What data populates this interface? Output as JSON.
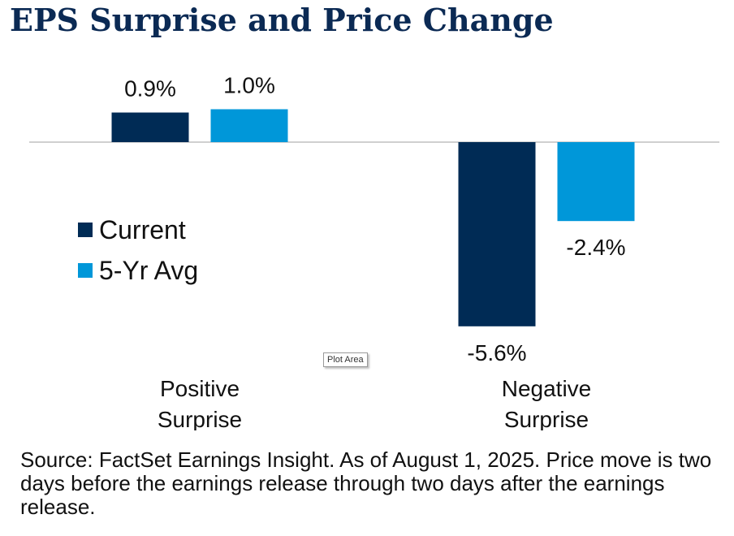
{
  "title": "EPS Surprise and Price Change",
  "tooltip": "Plot Area",
  "source": "Source: FactSet Earnings Insight. As of August 1, 2025. Price move is two days before the earnings release through two days after the earnings release.",
  "chart_data": {
    "type": "bar",
    "title": "EPS Surprise and Price Change",
    "categories": [
      [
        "Positive",
        "Surprise"
      ],
      [
        "Negative",
        "Surprise"
      ]
    ],
    "series": [
      {
        "name": "Current",
        "values": [
          0.9,
          -5.6
        ],
        "labels": [
          "0.9%",
          "-5.6%"
        ],
        "color": "#002b55"
      },
      {
        "name": "5-Yr Avg",
        "values": [
          1.0,
          -2.4
        ],
        "labels": [
          "1.0%",
          "-2.4%"
        ],
        "color": "#0097d9"
      }
    ],
    "ylim": [
      -6.0,
      1.1
    ],
    "grid": false,
    "legend": "left"
  }
}
